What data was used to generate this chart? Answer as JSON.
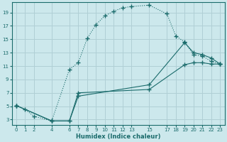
{
  "xlabel": "Humidex (Indice chaleur)",
  "bg_color": "#cce8ec",
  "grid_color": "#b0cfd5",
  "line_color": "#1a6b6b",
  "xlim": [
    -0.5,
    23.5
  ],
  "ylim": [
    2.2,
    20.5
  ],
  "xticks": [
    0,
    1,
    2,
    4,
    6,
    7,
    8,
    9,
    10,
    11,
    12,
    13,
    15,
    17,
    18,
    19,
    20,
    21,
    22,
    23
  ],
  "yticks": [
    3,
    5,
    7,
    9,
    11,
    13,
    15,
    17,
    19
  ],
  "curve_x": [
    0,
    1,
    2,
    4,
    6,
    7,
    8,
    9,
    10,
    11,
    12,
    13,
    15,
    17,
    18,
    19,
    20,
    21,
    22,
    23
  ],
  "curve_y": [
    5.1,
    4.5,
    3.5,
    2.8,
    10.5,
    11.5,
    15.1,
    17.2,
    18.5,
    19.2,
    19.7,
    19.9,
    20.1,
    18.8,
    15.5,
    14.6,
    12.7,
    12.5,
    11.7,
    11.3
  ],
  "line2_x": [
    0,
    4,
    6,
    7,
    15,
    19,
    20,
    21,
    22,
    23
  ],
  "line2_y": [
    5.1,
    2.8,
    2.8,
    6.5,
    8.2,
    14.5,
    13.0,
    12.7,
    12.2,
    11.3
  ],
  "line3_x": [
    0,
    4,
    6,
    7,
    15,
    19,
    20,
    21,
    22,
    23
  ],
  "line3_y": [
    5.1,
    2.8,
    2.8,
    7.0,
    7.5,
    11.2,
    11.5,
    11.5,
    11.3,
    11.3
  ]
}
